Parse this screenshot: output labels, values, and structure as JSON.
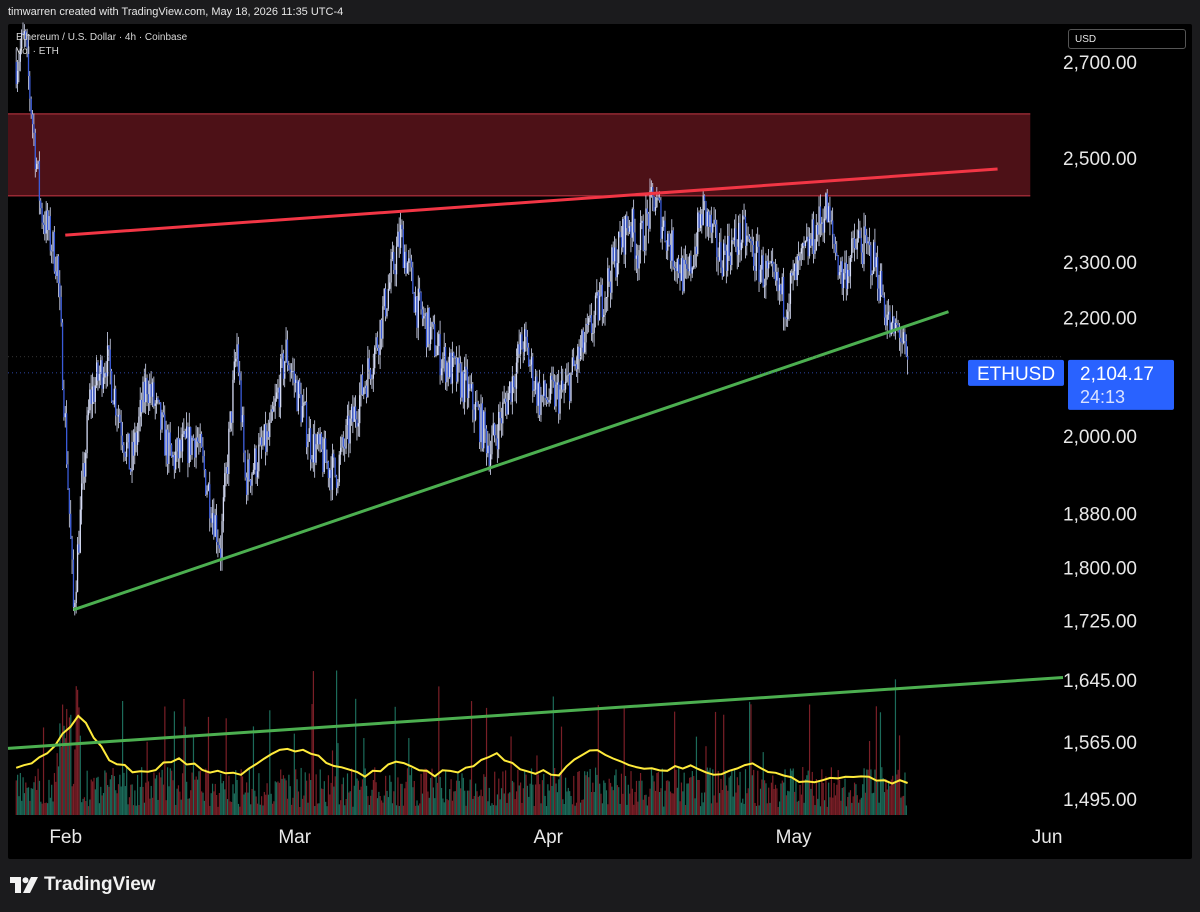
{
  "header": {
    "credit": "timwarren created with TradingView.com, May 18, 2026 11:35 UTC-4"
  },
  "legend": {
    "symbol": "Ethereum / U.S. Dollar · 4h · Coinbase",
    "volume": "Vol · ETH"
  },
  "currency": "USD",
  "brand": {
    "name": "TradingView"
  },
  "colors": {
    "resistance_zone": "#4d1117",
    "resistance_line": "#f23645",
    "support_line": "#4caf50",
    "candle": "#3a5bd9",
    "wick": "#d6dcf5",
    "volume_ma": "#ffeb3b",
    "price_tag": "#2962ff"
  },
  "chart_data": {
    "type": "candlestick",
    "y_scale": "log",
    "y_ticks": [
      "2,700.00",
      "2,500.00",
      "2,300.00",
      "2,200.00",
      "2,000.00",
      "1,880.00",
      "1,800.00",
      "1,725.00",
      "1,645.00",
      "1,565.00",
      "1,495.00"
    ],
    "y_tick_values": [
      2700,
      2500,
      2300,
      2200,
      2000,
      1880,
      1800,
      1725,
      1645,
      1565,
      1495
    ],
    "x_ticks": [
      "Feb",
      "Mar",
      "Apr",
      "May",
      "Jun"
    ],
    "x_tick_dates": [
      "2026-02-01",
      "2026-03-01",
      "2026-04-01",
      "2026-05-01",
      "2026-06-01"
    ],
    "x_range": [
      "2026-01-28",
      "2026-06-06"
    ],
    "price_path": [
      [
        "2026-01-29",
        2700
      ],
      [
        "2026-01-30",
        2750
      ],
      [
        "2026-02-01",
        2400
      ],
      [
        "2026-02-03",
        2300
      ],
      [
        "2026-02-05",
        1740
      ],
      [
        "2026-02-07",
        2060
      ],
      [
        "2026-02-09",
        2130
      ],
      [
        "2026-02-12",
        1950
      ],
      [
        "2026-02-14",
        2090
      ],
      [
        "2026-02-17",
        1960
      ],
      [
        "2026-02-20",
        2000
      ],
      [
        "2026-02-23",
        1830
      ],
      [
        "2026-02-25",
        2150
      ],
      [
        "2026-02-26",
        1930
      ],
      [
        "2026-03-01",
        2000
      ],
      [
        "2026-03-03",
        2140
      ],
      [
        "2026-03-06",
        1990
      ],
      [
        "2026-03-09",
        1940
      ],
      [
        "2026-03-11",
        2020
      ],
      [
        "2026-03-14",
        2150
      ],
      [
        "2026-03-17",
        2350
      ],
      [
        "2026-03-19",
        2220
      ],
      [
        "2026-03-22",
        2130
      ],
      [
        "2026-03-25",
        2080
      ],
      [
        "2026-03-28",
        1980
      ],
      [
        "2026-03-30",
        2060
      ],
      [
        "2026-04-01",
        2160
      ],
      [
        "2026-04-03",
        2060
      ],
      [
        "2026-04-06",
        2070
      ],
      [
        "2026-04-09",
        2170
      ],
      [
        "2026-04-11",
        2250
      ],
      [
        "2026-04-13",
        2340
      ],
      [
        "2026-04-14",
        2380
      ],
      [
        "2026-04-15",
        2320
      ],
      [
        "2026-04-17",
        2420
      ],
      [
        "2026-04-19",
        2330
      ],
      [
        "2026-04-21",
        2260
      ],
      [
        "2026-04-23",
        2400
      ],
      [
        "2026-04-25",
        2310
      ],
      [
        "2026-04-28",
        2350
      ],
      [
        "2026-04-30",
        2290
      ],
      [
        "2026-05-03",
        2230
      ],
      [
        "2026-05-06",
        2330
      ],
      [
        "2026-05-08",
        2400
      ],
      [
        "2026-05-10",
        2270
      ],
      [
        "2026-05-12",
        2340
      ],
      [
        "2026-05-14",
        2300
      ],
      [
        "2026-05-16",
        2170
      ],
      [
        "2026-05-17",
        2180
      ],
      [
        "2026-05-18",
        2104.17
      ]
    ],
    "trendlines": [
      {
        "name": "resistance",
        "points": [
          [
            "2026-02-04",
            2350
          ],
          [
            "2026-05-29",
            2478
          ]
        ]
      },
      {
        "name": "support",
        "points": [
          [
            "2026-02-05",
            1740
          ],
          [
            "2026-05-23",
            2210
          ]
        ]
      },
      {
        "name": "volume-trend",
        "points": [
          [
            "2026-01-28",
            1557
          ],
          [
            "2026-06-06",
            1648
          ]
        ]
      }
    ],
    "zone": {
      "name": "resistance-zone",
      "y_low": 2425,
      "y_high": 2590,
      "x_start": "2026-01-28",
      "x_end": "2026-06-02"
    },
    "volume_ma_shape": [
      0.35,
      0.55,
      1.0,
      0.45,
      0.3,
      0.5,
      0.35,
      0.3,
      0.55,
      0.6,
      0.4,
      0.3,
      0.45,
      0.3,
      0.35,
      0.55,
      0.35,
      0.3,
      0.6,
      0.45,
      0.35,
      0.4,
      0.3,
      0.45,
      0.3,
      0.2,
      0.3,
      0.25,
      0.2
    ],
    "last_price": {
      "symbol": "ETHUSD",
      "price": "2,104.17",
      "countdown": "24:13",
      "value": 2104.17
    }
  }
}
